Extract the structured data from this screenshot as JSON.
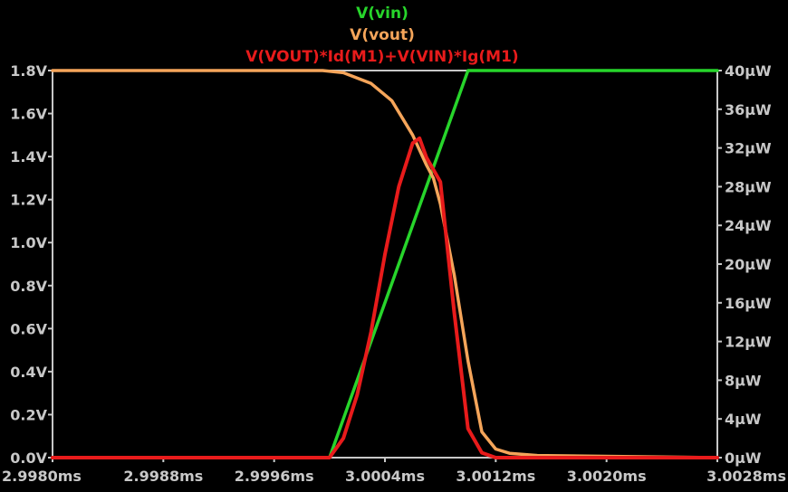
{
  "chart_data": {
    "type": "line",
    "title": "",
    "xlabel": "",
    "ylabel_left": "",
    "ylabel_right": "",
    "x_ticks": [
      "2.9980ms",
      "2.9988ms",
      "2.9996ms",
      "3.0004ms",
      "3.0012ms",
      "3.0020ms",
      "3.0028ms"
    ],
    "y_left_ticks": [
      "0.0V",
      "0.2V",
      "0.4V",
      "0.6V",
      "0.8V",
      "1.0V",
      "1.2V",
      "1.4V",
      "1.6V",
      "1.8V"
    ],
    "y_right_ticks": [
      "0μW",
      "4μW",
      "8μW",
      "12μW",
      "16μW",
      "20μW",
      "24μW",
      "28μW",
      "32μW",
      "36μW",
      "40μW"
    ],
    "xlim": [
      2.998,
      3.0028
    ],
    "ylim_left": [
      0,
      1.8
    ],
    "ylim_right": [
      0,
      40
    ],
    "grid": false,
    "legend_position": "top-center",
    "background": "#000000",
    "axis_color": "#c8c8c8",
    "series": [
      {
        "name": "V(vin)",
        "color": "#27d52b",
        "axis": "left",
        "x": [
          2.998,
          3.0,
          3.001,
          3.0028
        ],
        "y": [
          0.0,
          0.0,
          1.8,
          1.8
        ]
      },
      {
        "name": "V(vout)",
        "color": "#f5a55a",
        "axis": "left",
        "x": [
          2.998,
          2.99995,
          3.0001,
          3.0003,
          3.00045,
          3.0006,
          3.0007,
          3.00075,
          3.0008,
          3.0009,
          3.001,
          3.0011,
          3.0012,
          3.0013,
          3.0015,
          3.0028
        ],
        "y": [
          1.8,
          1.8,
          1.79,
          1.74,
          1.66,
          1.5,
          1.36,
          1.3,
          1.18,
          0.85,
          0.45,
          0.12,
          0.04,
          0.02,
          0.01,
          0.0
        ]
      },
      {
        "name": "V(VOUT)*Id(M1)+V(VIN)*Ig(M1)",
        "color": "#e81b1b",
        "axis": "right",
        "x": [
          2.998,
          3.0,
          3.0001,
          3.0002,
          3.0003,
          3.0004,
          3.0005,
          3.0006,
          3.00065,
          3.0007,
          3.0008,
          3.0009,
          3.001,
          3.0011,
          3.0012,
          3.0028
        ],
        "y": [
          0.0,
          0.0,
          2.0,
          6.5,
          13.0,
          21.0,
          28.0,
          32.5,
          33.0,
          31.0,
          28.5,
          15.0,
          3.0,
          0.5,
          0.0,
          0.0
        ]
      }
    ]
  }
}
